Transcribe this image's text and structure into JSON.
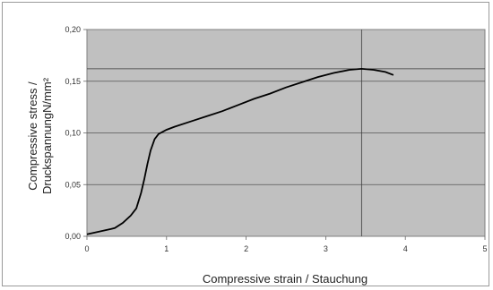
{
  "chart_data": {
    "type": "line",
    "title": "",
    "xlabel": "Compressive strain / Stauchung",
    "ylabel_line1": "Compressive stress /",
    "ylabel_line2": "DruckspannungN/mm²",
    "xlim": [
      0,
      5
    ],
    "ylim": [
      0,
      0.2
    ],
    "x_ticks": [
      "0",
      "1",
      "2",
      "3",
      "4",
      "5"
    ],
    "y_ticks": [
      "0,00",
      "0,05",
      "0,10",
      "0,15",
      "0,20"
    ],
    "grid": "horizontal",
    "plot_background": "#c0c0c0",
    "line_color": "#000000",
    "series": [
      {
        "x": [
          0,
          0.3,
          0.35,
          0.45,
          0.55,
          0.62,
          0.68,
          0.72,
          0.76,
          0.8,
          0.85,
          0.9,
          0.95,
          1.0,
          1.1,
          1.3,
          1.5,
          1.7,
          1.9,
          2.1,
          2.3,
          2.5,
          2.7,
          2.9,
          3.1,
          3.3,
          3.45,
          3.6,
          3.75,
          3.85
        ],
        "values": [
          0.002,
          0.007,
          0.008,
          0.013,
          0.02,
          0.027,
          0.042,
          0.055,
          0.07,
          0.083,
          0.094,
          0.099,
          0.101,
          0.103,
          0.106,
          0.111,
          0.116,
          0.121,
          0.127,
          0.133,
          0.138,
          0.144,
          0.149,
          0.154,
          0.158,
          0.161,
          0.162,
          0.161,
          0.159,
          0.156
        ]
      }
    ],
    "reference_lines": {
      "x": 3.45,
      "y": 0.162
    }
  }
}
